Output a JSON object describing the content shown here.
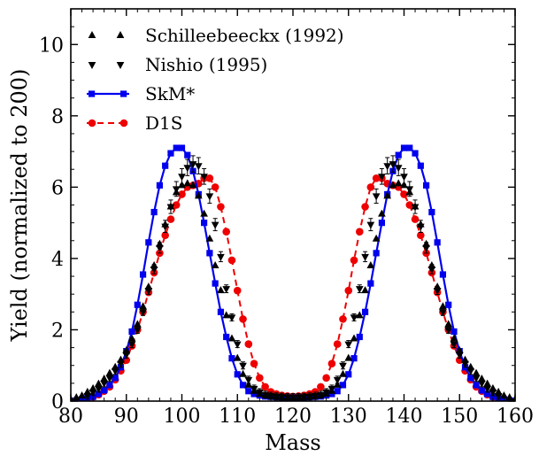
{
  "chart_data": {
    "type": "line",
    "xlabel": "Mass",
    "ylabel": "Yield (normalized to 200)",
    "xlim": [
      80,
      160
    ],
    "ylim": [
      0,
      11
    ],
    "x_ticks": [
      "80",
      "90",
      "100",
      "110",
      "120",
      "130",
      "140",
      "150",
      "160"
    ],
    "y_ticks": [
      "0",
      "2",
      "4",
      "6",
      "8",
      "10"
    ],
    "legend_position": "top-left",
    "series": [
      {
        "name": "Schilleebeeckx (1992)",
        "style": "triangle-up",
        "color": "#000000",
        "x": [
          80,
          81,
          82,
          83,
          84,
          85,
          86,
          87,
          88,
          89,
          90,
          91,
          92,
          93,
          94,
          95,
          96,
          97,
          98,
          99,
          100,
          101,
          102,
          103,
          104,
          105,
          106,
          107,
          108,
          109,
          110,
          111,
          112,
          113,
          114,
          115,
          116,
          117,
          118,
          119,
          120,
          121,
          122,
          123,
          124,
          125,
          126,
          127,
          128,
          129,
          130,
          131,
          132,
          133,
          134,
          135,
          136,
          137,
          138,
          139,
          140,
          141,
          142,
          143,
          144,
          145,
          146,
          147,
          148,
          149,
          150,
          151,
          152,
          153,
          154,
          155,
          156,
          157,
          158,
          159,
          160
        ],
        "y": [
          0.05,
          0.1,
          0.15,
          0.25,
          0.35,
          0.48,
          0.62,
          0.78,
          0.95,
          1.15,
          1.42,
          1.75,
          2.15,
          2.65,
          3.2,
          3.8,
          4.4,
          4.95,
          5.45,
          5.85,
          6.05,
          6.1,
          6.05,
          5.75,
          5.25,
          4.55,
          3.8,
          3.1,
          2.4,
          1.75,
          1.2,
          0.75,
          0.45,
          0.28,
          0.2,
          0.16,
          0.14,
          0.12,
          0.11,
          0.1,
          0.1,
          0.1,
          0.11,
          0.12,
          0.14,
          0.16,
          0.2,
          0.28,
          0.45,
          0.75,
          1.2,
          1.75,
          2.4,
          3.1,
          3.8,
          4.55,
          5.25,
          5.75,
          6.05,
          6.1,
          6.05,
          5.85,
          5.45,
          4.95,
          4.4,
          3.8,
          3.2,
          2.65,
          2.15,
          1.75,
          1.42,
          1.15,
          0.95,
          0.78,
          0.62,
          0.48,
          0.35,
          0.25,
          0.15,
          0.1,
          0.05
        ]
      },
      {
        "name": "Nishio (1995)",
        "style": "triangle-down",
        "color": "#000000",
        "x": [
          83,
          84,
          85,
          86,
          87,
          88,
          89,
          90,
          91,
          92,
          93,
          94,
          95,
          96,
          97,
          98,
          99,
          100,
          101,
          102,
          103,
          104,
          105,
          106,
          107,
          108,
          109,
          110,
          111,
          112,
          113,
          114,
          115,
          116,
          117,
          118,
          119,
          120,
          121,
          122,
          123,
          124,
          125,
          126,
          127,
          128,
          129,
          130,
          131,
          132,
          133,
          134,
          135,
          136,
          137,
          138,
          139,
          140,
          141,
          142,
          143,
          144,
          145,
          146,
          147,
          148,
          149,
          150,
          151,
          152,
          153,
          154,
          155,
          156,
          157
        ],
        "y": [
          0.15,
          0.25,
          0.35,
          0.5,
          0.65,
          0.85,
          1.05,
          1.3,
          1.6,
          2.0,
          2.5,
          3.1,
          3.7,
          4.3,
          4.9,
          5.45,
          5.95,
          6.3,
          6.55,
          6.65,
          6.6,
          6.3,
          5.75,
          4.95,
          4.05,
          3.15,
          2.35,
          1.6,
          1.0,
          0.6,
          0.35,
          0.25,
          0.18,
          0.15,
          0.13,
          0.12,
          0.11,
          0.11,
          0.11,
          0.12,
          0.13,
          0.15,
          0.18,
          0.25,
          0.35,
          0.6,
          1.0,
          1.6,
          2.35,
          3.15,
          4.05,
          4.95,
          5.75,
          6.3,
          6.6,
          6.65,
          6.55,
          6.3,
          5.95,
          5.45,
          4.9,
          4.3,
          3.7,
          3.1,
          2.5,
          2.0,
          1.6,
          1.3,
          1.05,
          0.85,
          0.65,
          0.5,
          0.35,
          0.25,
          0.15
        ]
      },
      {
        "name": "SkM*",
        "style": "solid-square",
        "color": "#0000ee",
        "x": [
          80,
          81,
          82,
          83,
          84,
          85,
          86,
          87,
          88,
          89,
          90,
          91,
          92,
          93,
          94,
          95,
          96,
          97,
          98,
          99,
          100,
          101,
          102,
          103,
          104,
          105,
          106,
          107,
          108,
          109,
          110,
          111,
          112,
          113,
          114,
          115,
          116,
          117,
          118,
          119,
          120,
          121,
          122,
          123,
          124,
          125,
          126,
          127,
          128,
          129,
          130,
          131,
          132,
          133,
          134,
          135,
          136,
          137,
          138,
          139,
          140,
          141,
          142,
          143,
          144,
          145,
          146,
          147,
          148,
          149,
          150,
          151,
          152,
          153,
          154,
          155,
          156,
          157,
          158,
          159,
          160
        ],
        "y": [
          0.0,
          0.02,
          0.05,
          0.08,
          0.12,
          0.2,
          0.3,
          0.45,
          0.65,
          0.95,
          1.4,
          1.95,
          2.7,
          3.55,
          4.45,
          5.3,
          6.05,
          6.6,
          6.95,
          7.1,
          7.1,
          6.9,
          6.45,
          5.8,
          5.0,
          4.15,
          3.3,
          2.5,
          1.8,
          1.2,
          0.75,
          0.45,
          0.28,
          0.2,
          0.16,
          0.13,
          0.12,
          0.11,
          0.1,
          0.1,
          0.1,
          0.1,
          0.1,
          0.11,
          0.12,
          0.13,
          0.16,
          0.2,
          0.28,
          0.45,
          0.75,
          1.2,
          1.8,
          2.5,
          3.3,
          4.15,
          5.0,
          5.8,
          6.45,
          6.9,
          7.1,
          7.1,
          6.95,
          6.6,
          6.05,
          5.3,
          4.45,
          3.55,
          2.7,
          1.95,
          1.4,
          0.95,
          0.65,
          0.45,
          0.3,
          0.2,
          0.12,
          0.08,
          0.05,
          0.02,
          0.0
        ]
      },
      {
        "name": "D1S",
        "style": "dashed-circle",
        "color": "#ee0000",
        "x": [
          81,
          82,
          83,
          84,
          85,
          86,
          87,
          88,
          89,
          90,
          91,
          92,
          93,
          94,
          95,
          96,
          97,
          98,
          99,
          100,
          101,
          102,
          103,
          104,
          105,
          106,
          107,
          108,
          109,
          110,
          111,
          112,
          113,
          114,
          115,
          116,
          117,
          118,
          119,
          120,
          121,
          122,
          123,
          124,
          125,
          126,
          127,
          128,
          129,
          130,
          131,
          132,
          133,
          134,
          135,
          136,
          137,
          138,
          139,
          140,
          141,
          142,
          143,
          144,
          145,
          146,
          147,
          148,
          149,
          150,
          151,
          152,
          153,
          154,
          155,
          156,
          157,
          158,
          159
        ],
        "y": [
          0.02,
          0.05,
          0.08,
          0.12,
          0.18,
          0.28,
          0.4,
          0.6,
          0.85,
          1.15,
          1.55,
          2.0,
          2.5,
          3.05,
          3.6,
          4.15,
          4.65,
          5.1,
          5.5,
          5.8,
          6.0,
          6.05,
          6.1,
          6.25,
          6.25,
          6.0,
          5.45,
          4.75,
          3.95,
          3.1,
          2.3,
          1.6,
          1.05,
          0.65,
          0.4,
          0.26,
          0.2,
          0.16,
          0.14,
          0.13,
          0.14,
          0.16,
          0.2,
          0.26,
          0.4,
          0.65,
          1.05,
          1.6,
          2.3,
          3.1,
          3.95,
          4.75,
          5.45,
          6.0,
          6.25,
          6.25,
          6.1,
          6.05,
          6.0,
          5.8,
          5.5,
          5.1,
          4.65,
          4.15,
          3.6,
          3.05,
          2.5,
          2.0,
          1.55,
          1.15,
          0.85,
          0.6,
          0.4,
          0.28,
          0.18,
          0.12,
          0.08,
          0.05,
          0.02
        ]
      }
    ]
  }
}
